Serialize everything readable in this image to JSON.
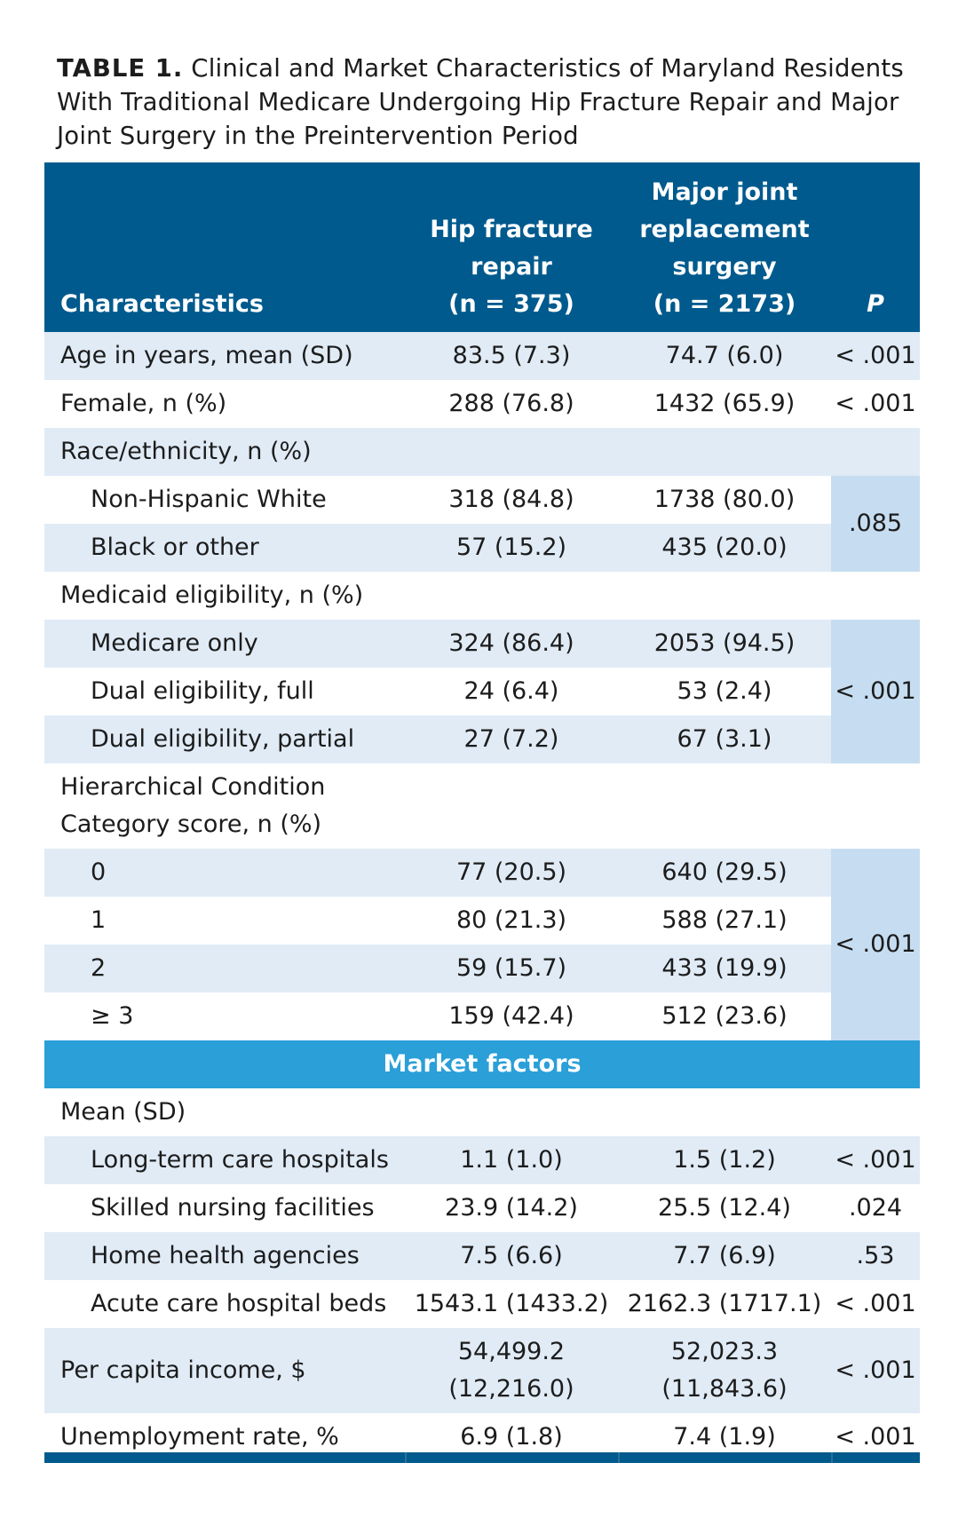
{
  "caption": {
    "label": "TABLE 1.",
    "text": "Clinical and Market Characteristics of Maryland Residents With Traditional Medicare Undergoing Hip Fracture Repair and Major Joint Surgery in the Preintervention Period"
  },
  "table": {
    "headers": {
      "characteristics": "Characteristics",
      "hip_line1": "Hip fracture",
      "hip_line2": "repair",
      "hip_line3": "(n = 375)",
      "joint_line1": "Major joint",
      "joint_line2": "replacement",
      "joint_line3": "surgery",
      "joint_line4": "(n = 2173)",
      "p": "P"
    },
    "age": {
      "label": "Age in years, mean (SD)",
      "hip": "83.5 (7.3)",
      "joint": "74.7 (6.0)",
      "p": "< .001"
    },
    "female": {
      "label": "Female, n (%)",
      "hip": "288 (76.8)",
      "joint": "1432 (65.9)",
      "p": "< .001"
    },
    "race": {
      "label": "Race/ethnicity, n (%)",
      "p": ".085",
      "rows": [
        {
          "label": "Non-Hispanic White",
          "hip": "318 (84.8)",
          "joint": "1738 (80.0)"
        },
        {
          "label": "Black or other",
          "hip": "57 (15.2)",
          "joint": "435 (20.0)"
        }
      ]
    },
    "medicaid": {
      "label": "Medicaid eligibility, n (%)",
      "p": "< .001",
      "rows": [
        {
          "label": "Medicare only",
          "hip": "324 (86.4)",
          "joint": "2053 (94.5)"
        },
        {
          "label": "Dual eligibility, full",
          "hip": "24 (6.4)",
          "joint": "53 (2.4)"
        },
        {
          "label": "Dual eligibility, partial",
          "hip": "27 (7.2)",
          "joint": "67 (3.1)"
        }
      ]
    },
    "hcc": {
      "label_line1": "Hierarchical Condition",
      "label_line2": "Category score, n (%)",
      "p": "< .001",
      "rows": [
        {
          "label": "0",
          "hip": "77 (20.5)",
          "joint": "640 (29.5)"
        },
        {
          "label": "1",
          "hip": "80 (21.3)",
          "joint": "588 (27.1)"
        },
        {
          "label": "2",
          "hip": "59 (15.7)",
          "joint": "433 (19.9)"
        },
        {
          "label": "≥ 3",
          "hip": "159 (42.4)",
          "joint": "512 (23.6)"
        }
      ]
    },
    "market_section": "Market factors",
    "mean_label": "Mean (SD)",
    "market_rows": [
      {
        "label": "Long-term care hospitals",
        "hip": "1.1 (1.0)",
        "joint": "1.5 (1.2)",
        "p": "< .001"
      },
      {
        "label": "Skilled nursing facilities",
        "hip": "23.9 (14.2)",
        "joint": "25.5 (12.4)",
        "p": ".024"
      },
      {
        "label": "Home health agencies",
        "hip": "7.5 (6.6)",
        "joint": "7.7 (6.9)",
        "p": ".53"
      },
      {
        "label": "Acute care hospital beds",
        "hip": "1543.1 (1433.2)",
        "joint": "2162.3 (1717.1)",
        "p": "< .001"
      }
    ],
    "income": {
      "label": "Per capita income, $",
      "hip_line1": "54,499.2",
      "hip_line2": "(12,216.0)",
      "joint_line1": "52,023.3",
      "joint_line2": "(11,843.6)",
      "p": "< .001"
    },
    "unemployment": {
      "label": "Unemployment rate, %",
      "hip": "6.9 (1.8)",
      "joint": "7.4 (1.9)",
      "p": "< .001"
    }
  }
}
